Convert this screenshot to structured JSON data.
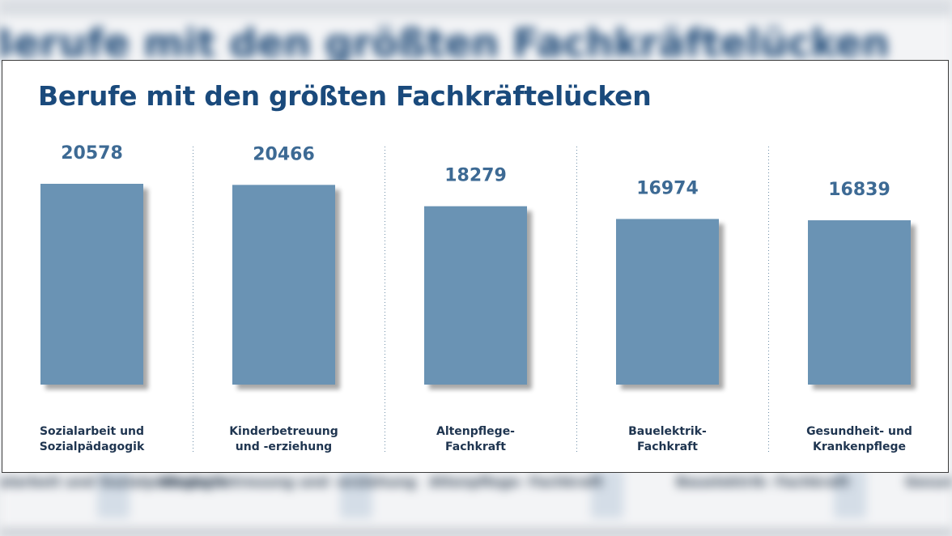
{
  "chart_data": {
    "type": "bar",
    "title": "Berufe mit den größten Fachkräftelücken",
    "categories": [
      "Sozialarbeit und\nSozialpädagogik",
      "Kinderbetreuung\nund -erziehung",
      "Altenpflege-\nFachkraft",
      "Bauelektrik-\nFachkraft",
      "Gesundheit- und\nKrankenpflege"
    ],
    "values": [
      20578,
      20466,
      18279,
      16974,
      16839
    ],
    "value_labels": [
      "20578",
      "20466",
      "18279",
      "16974",
      "16839"
    ],
    "xlabel": "",
    "ylabel": "",
    "ylim": [
      0,
      20578
    ],
    "grid": false,
    "bar_color": "#6b93b4",
    "label_color": "#3d6a94",
    "title_color": "#1a4a7c"
  }
}
